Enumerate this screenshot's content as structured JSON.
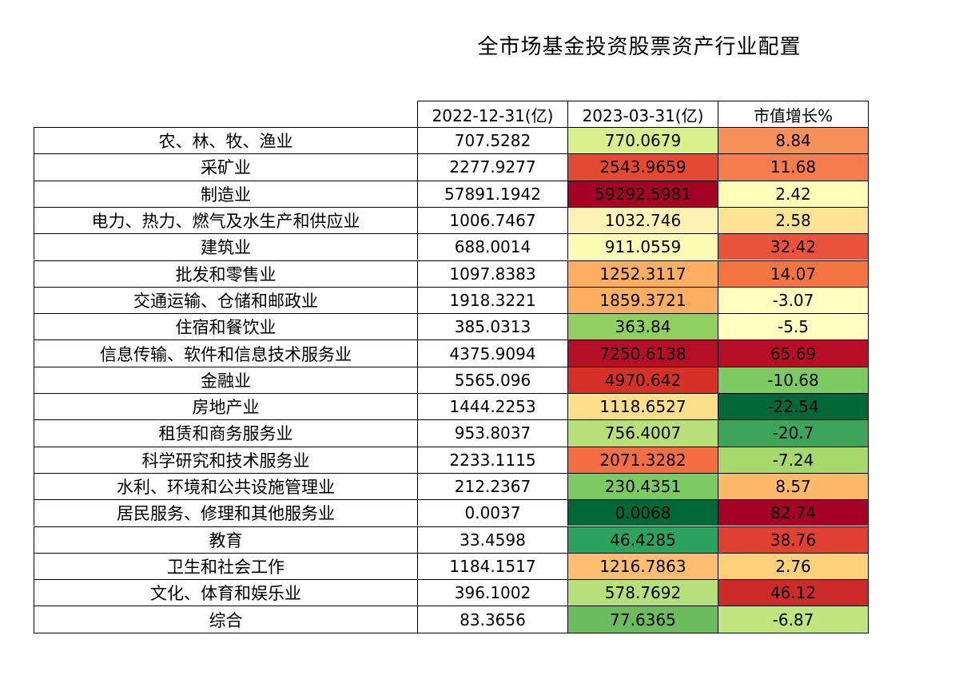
{
  "chart_data": {
    "type": "table",
    "title": "全市场基金投资股票资产行业配置",
    "columns": [
      "2022-12-31(亿)",
      "2023-03-31(亿)",
      "市值增长%"
    ],
    "rows": [
      {
        "industry": "农、林、牧、渔业",
        "v2022": "707.5282",
        "v2023": "770.0679",
        "growth": "8.84"
      },
      {
        "industry": "采矿业",
        "v2022": "2277.9277",
        "v2023": "2543.9659",
        "growth": "11.68"
      },
      {
        "industry": "制造业",
        "v2022": "57891.1942",
        "v2023": "59292.5981",
        "growth": "2.42"
      },
      {
        "industry": "电力、热力、燃气及水生产和供应业",
        "v2022": "1006.7467",
        "v2023": "1032.746",
        "growth": "2.58"
      },
      {
        "industry": "建筑业",
        "v2022": "688.0014",
        "v2023": "911.0559",
        "growth": "32.42"
      },
      {
        "industry": "批发和零售业",
        "v2022": "1097.8383",
        "v2023": "1252.3117",
        "growth": "14.07"
      },
      {
        "industry": "交通运输、仓储和邮政业",
        "v2022": "1918.3221",
        "v2023": "1859.3721",
        "growth": "-3.07"
      },
      {
        "industry": "住宿和餐饮业",
        "v2022": "385.0313",
        "v2023": "363.84",
        "growth": "-5.5"
      },
      {
        "industry": "信息传输、软件和信息技术服务业",
        "v2022": "4375.9094",
        "v2023": "7250.6138",
        "growth": "65.69"
      },
      {
        "industry": "金融业",
        "v2022": "5565.096",
        "v2023": "4970.642",
        "growth": "-10.68"
      },
      {
        "industry": "房地产业",
        "v2022": "1444.2253",
        "v2023": "1118.6527",
        "growth": "-22.54"
      },
      {
        "industry": "租赁和商务服务业",
        "v2022": "953.8037",
        "v2023": "756.4007",
        "growth": "-20.7"
      },
      {
        "industry": "科学研究和技术服务业",
        "v2022": "2233.1115",
        "v2023": "2071.3282",
        "growth": "-7.24"
      },
      {
        "industry": "水利、环境和公共设施管理业",
        "v2022": "212.2367",
        "v2023": "230.4351",
        "growth": "8.57"
      },
      {
        "industry": "居民服务、修理和其他服务业",
        "v2022": "0.0037",
        "v2023": "0.0068",
        "growth": "82.74"
      },
      {
        "industry": "教育",
        "v2022": "33.4598",
        "v2023": "46.4285",
        "growth": "38.76"
      },
      {
        "industry": "卫生和社会工作",
        "v2022": "1184.1517",
        "v2023": "1216.7863",
        "growth": "2.76"
      },
      {
        "industry": "文化、体育和娱乐业",
        "v2022": "396.1002",
        "v2023": "578.7692",
        "growth": "46.12"
      },
      {
        "industry": "综合",
        "v2022": "83.3656",
        "v2023": "77.6365",
        "growth": "-6.87"
      }
    ],
    "colors": {
      "v2023": [
        "#d9ef8b",
        "#e34a33",
        "#a50026",
        "#fff3b3",
        "#fdfcb4",
        "#fdae61",
        "#fdae61",
        "#91cf60",
        "#b40f26",
        "#d73027",
        "#fee08b",
        "#b8e07a",
        "#f46d43",
        "#7ccb62",
        "#006837",
        "#2ca25f",
        "#fdbf6f",
        "#b8e07a",
        "#6abd5c"
      ],
      "growth": [
        "#f79058",
        "#f57c4c",
        "#ffffb8",
        "#fde394",
        "#e8533a",
        "#f4743f",
        "#ffffbf",
        "#ffffbf",
        "#b90f26",
        "#7ccb62",
        "#006837",
        "#3ca55a",
        "#a6d96a",
        "#fdb86a",
        "#a50026",
        "#e04030",
        "#fdd07a",
        "#cd2a2a",
        "#c2e67e"
      ]
    },
    "colormap": "RdYlGn_r"
  }
}
